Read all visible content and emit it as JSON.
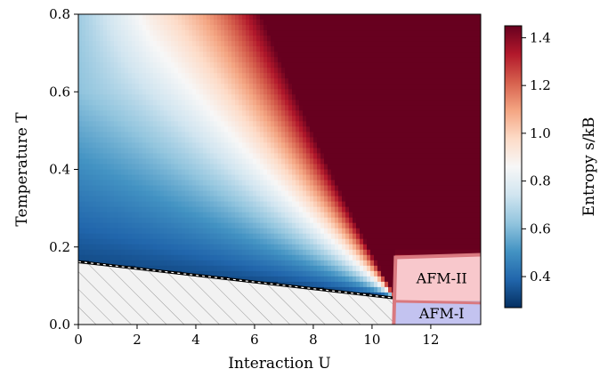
{
  "chart_data": {
    "type": "heatmap",
    "xlabel": "Interaction U",
    "ylabel": "Temperature T",
    "xlim": [
      0,
      13.7
    ],
    "ylim": [
      0,
      0.8
    ],
    "x_ticks": [
      "0",
      "2",
      "4",
      "6",
      "8",
      "10",
      "12"
    ],
    "x_tick_values": [
      0,
      2,
      4,
      6,
      8,
      10,
      12
    ],
    "y_ticks": [
      "0.0",
      "0.2",
      "0.4",
      "0.6",
      "0.8"
    ],
    "y_tick_values": [
      0.0,
      0.2,
      0.4,
      0.6,
      0.8
    ],
    "colorbar": {
      "label": "Entropy s/kB",
      "range": [
        0.27,
        1.45
      ],
      "ticks": [
        "0.4",
        "0.6",
        "0.8",
        "1.0",
        "1.2",
        "1.4"
      ],
      "tick_values": [
        0.4,
        0.6,
        0.8,
        1.0,
        1.2,
        1.4
      ],
      "colormap": "RdBu_r"
    },
    "boundary_line": {
      "style": "dashed",
      "points": [
        [
          0,
          0.162
        ],
        [
          10.8,
          0.068
        ]
      ]
    },
    "hatched_region": {
      "description_points": [
        [
          0,
          0
        ],
        [
          0,
          0.162
        ],
        [
          10.8,
          0.068
        ],
        [
          10.8,
          0
        ]
      ]
    },
    "regions": [
      {
        "label": "AFM-II",
        "color": "#f8c8cc",
        "u_range": [
          10.8,
          13.7
        ],
        "t_range": [
          0.06,
          0.18
        ]
      },
      {
        "label": "AFM-I",
        "color": "#c3c3f0",
        "u_range": [
          10.8,
          13.7
        ],
        "t_range": [
          0.0,
          0.06
        ]
      }
    ]
  }
}
